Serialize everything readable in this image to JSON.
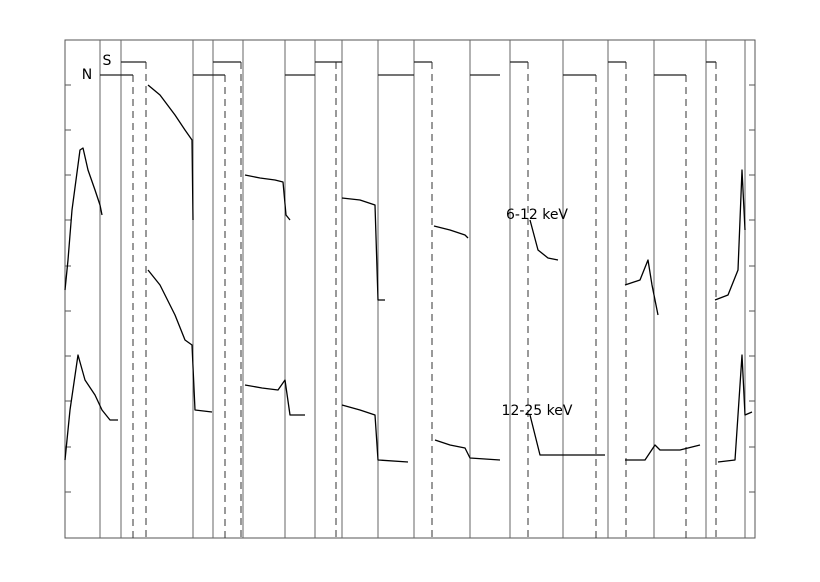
{
  "chart_data": {
    "type": "line",
    "annotations": {
      "north": "N",
      "south": "S",
      "band_low": "6-12 keV",
      "band_high": "12-25 keV"
    },
    "xlim": [
      0,
      690
    ],
    "ylim": [
      0,
      498
    ],
    "yticks": [
      46,
      91,
      137,
      182,
      227,
      272,
      318,
      363,
      408,
      453
    ],
    "color": "#000000",
    "series": [
      {
        "x": [
          0,
          3,
          7,
          15,
          18,
          23,
          30,
          35,
          37,
          null,
          83,
          95,
          110,
          120,
          127,
          128,
          null,
          180,
          195,
          210,
          218,
          221,
          225,
          null,
          277,
          295,
          310,
          313,
          320,
          null,
          369,
          385,
          400,
          403,
          null,
          465,
          473,
          483,
          493,
          null,
          560,
          575,
          583,
          587,
          593,
          null,
          650,
          663,
          673,
          677,
          680
        ],
        "values": [
          248,
          278,
          328,
          388,
          390,
          368,
          348,
          333,
          323,
          null,
          453,
          443,
          423,
          408,
          398,
          318,
          null,
          363,
          360,
          358,
          356,
          323,
          318,
          null,
          340,
          338,
          333,
          238,
          238,
          null,
          312,
          308,
          303,
          300,
          null,
          318,
          288,
          280,
          278,
          null,
          253,
          258,
          278,
          253,
          223,
          null,
          238,
          243,
          268,
          368,
          308
        ]
      },
      {
        "x": [
          0,
          5,
          13,
          20,
          30,
          37,
          45,
          53,
          null,
          83,
          95,
          110,
          120,
          127,
          130,
          147,
          null,
          180,
          197,
          213,
          220,
          225,
          240,
          null,
          277,
          295,
          310,
          313,
          343,
          null,
          370,
          385,
          400,
          405,
          435,
          null,
          465,
          475,
          495,
          525,
          540,
          null,
          560,
          580,
          590,
          595,
          615,
          635,
          null,
          653,
          670,
          677,
          680,
          687
        ],
        "values": [
          78,
          128,
          183,
          158,
          143,
          128,
          118,
          118,
          null,
          268,
          253,
          223,
          198,
          193,
          128,
          126,
          null,
          153,
          150,
          148,
          158,
          123,
          123,
          null,
          133,
          128,
          123,
          78,
          76,
          null,
          98,
          93,
          90,
          80,
          78,
          null,
          123,
          83,
          83,
          83,
          83,
          null,
          78,
          78,
          93,
          88,
          88,
          93,
          null,
          76,
          78,
          183,
          123,
          126
        ]
      }
    ]
  }
}
